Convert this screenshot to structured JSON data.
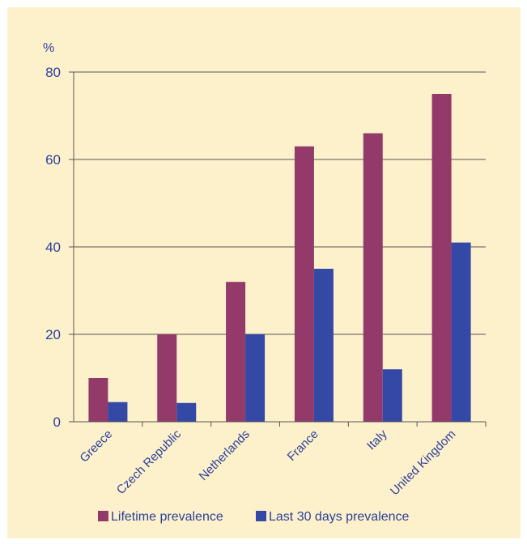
{
  "chart_data": {
    "type": "bar",
    "ylabel": "%",
    "ylim": [
      0,
      80
    ],
    "yticks": [
      0,
      20,
      40,
      60,
      80
    ],
    "grid": true,
    "legend_position": "bottom",
    "categories": [
      "Greece",
      "Czech Republic",
      "Netherlands",
      "France",
      "Italy",
      "United Kingdom"
    ],
    "series": [
      {
        "name": "Lifetime prevalence",
        "color": "#943a6b",
        "values": [
          10,
          20,
          32,
          63,
          66,
          75
        ]
      },
      {
        "name": "Last 30 days prevalence",
        "color": "#3448a6",
        "values": [
          4.5,
          4.3,
          20,
          35,
          12,
          41
        ]
      }
    ]
  },
  "colors": {
    "background": "#fdf1cc",
    "text": "#2b3f99",
    "axis": "#555555"
  }
}
